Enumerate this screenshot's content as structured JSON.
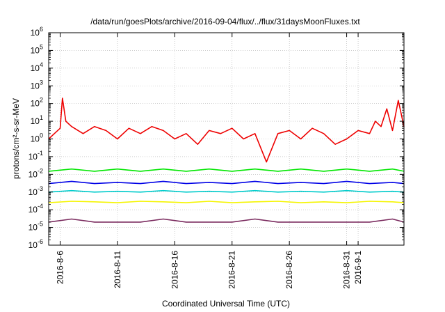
{
  "chart_data": {
    "type": "line",
    "title": "/data/run/goesPlots/archive/2016-09-04/flux/../flux/31daysMoonFluxes.txt",
    "xlabel": "Coordinated Universal Time (UTC)",
    "ylabel": "protons/cm²-s-sr-MeV",
    "yscale": "log",
    "ylim_exponent": [
      -6,
      6
    ],
    "y_tick_base": "10",
    "y_tick_exponents": [
      "-6",
      "-5",
      "-4",
      "-3",
      "-2",
      "-1",
      "0",
      "1",
      "2",
      "3",
      "4",
      "5",
      "6"
    ],
    "xlim_days": [
      0,
      31
    ],
    "x_ticks": [
      {
        "day": 1,
        "label": "2016-8-6"
      },
      {
        "day": 6,
        "label": "2016-8-11"
      },
      {
        "day": 11,
        "label": "2016-8-16"
      },
      {
        "day": 16,
        "label": "2016-8-21"
      },
      {
        "day": 21,
        "label": "2016-8-26"
      },
      {
        "day": 26,
        "label": "2016-8-31"
      },
      {
        "day": 27,
        "label": "2016-9-1"
      }
    ],
    "grid": true,
    "legend": "none",
    "series": [
      {
        "color": "#7a2a5e",
        "x": [
          0,
          2,
          4,
          6,
          8,
          10,
          12,
          14,
          16,
          18,
          20,
          22,
          24,
          26,
          28,
          30,
          31
        ],
        "y": [
          2e-05,
          3e-05,
          2e-05,
          2e-05,
          2e-05,
          3e-05,
          2e-05,
          2e-05,
          2e-05,
          3e-05,
          2e-05,
          2e-05,
          2e-05,
          2e-05,
          2e-05,
          3e-05,
          2e-05
        ]
      },
      {
        "color": "#f5f500",
        "x": [
          0,
          2,
          4,
          6,
          8,
          10,
          12,
          14,
          16,
          18,
          20,
          22,
          24,
          26,
          28,
          30,
          31
        ],
        "y": [
          0.00025,
          0.0003,
          0.00028,
          0.00025,
          0.0003,
          0.00028,
          0.00025,
          0.0003,
          0.00025,
          0.00028,
          0.0003,
          0.00025,
          0.00028,
          0.00025,
          0.0003,
          0.00028,
          0.00025
        ]
      },
      {
        "color": "#00cccc",
        "x": [
          0,
          2,
          4,
          6,
          8,
          10,
          12,
          14,
          16,
          18,
          20,
          22,
          24,
          26,
          28,
          30,
          31
        ],
        "y": [
          0.001,
          0.0012,
          0.001,
          0.0011,
          0.001,
          0.0012,
          0.001,
          0.0011,
          0.001,
          0.0012,
          0.001,
          0.0011,
          0.001,
          0.0012,
          0.001,
          0.0011,
          0.001
        ]
      },
      {
        "color": "#00e600",
        "x": [
          0,
          2,
          4,
          6,
          8,
          10,
          12,
          14,
          16,
          18,
          20,
          22,
          24,
          26,
          28,
          30,
          31
        ],
        "y": [
          0.015,
          0.02,
          0.015,
          0.02,
          0.015,
          0.02,
          0.015,
          0.02,
          0.015,
          0.02,
          0.015,
          0.02,
          0.015,
          0.02,
          0.015,
          0.02,
          0.015
        ]
      },
      {
        "color": "#0000e6",
        "x": [
          0,
          2,
          4,
          6,
          8,
          10,
          12,
          14,
          16,
          18,
          20,
          22,
          24,
          26,
          28,
          30,
          31
        ],
        "y": [
          0.003,
          0.004,
          0.003,
          0.0035,
          0.003,
          0.004,
          0.003,
          0.0035,
          0.003,
          0.004,
          0.003,
          0.0035,
          0.003,
          0.004,
          0.003,
          0.0035,
          0.003
        ]
      },
      {
        "color": "#ee0000",
        "x": [
          0,
          0.5,
          1,
          1.2,
          1.5,
          2,
          3,
          4,
          5,
          6,
          7,
          8,
          9,
          10,
          11,
          12,
          13,
          14,
          15,
          16,
          17,
          18,
          19,
          20,
          21,
          22,
          23,
          24,
          25,
          26,
          27,
          28,
          28.5,
          29,
          29.5,
          30,
          30.5,
          31
        ],
        "y": [
          1,
          2,
          4,
          200,
          10,
          5,
          2,
          5,
          3,
          1,
          4,
          2,
          5,
          3,
          1,
          2,
          0.5,
          3,
          2,
          4,
          1,
          2,
          0.05,
          2,
          3,
          1,
          4,
          2,
          0.5,
          1,
          3,
          2,
          10,
          5,
          50,
          3,
          150,
          5
        ]
      }
    ]
  }
}
